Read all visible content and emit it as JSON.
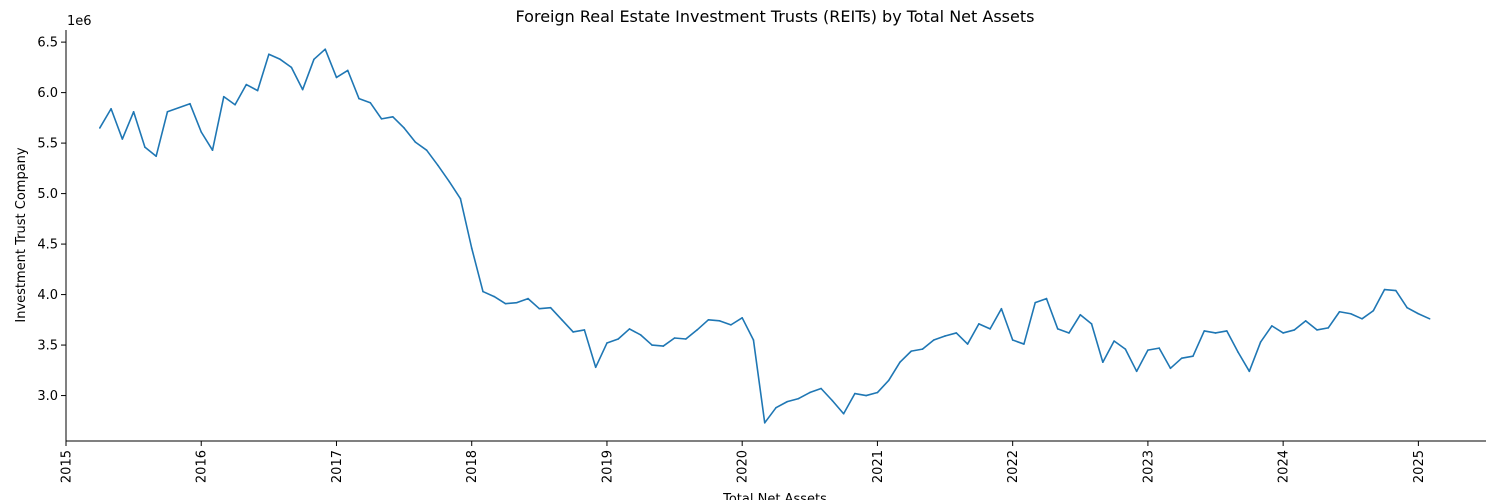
{
  "chart_data": {
    "type": "line",
    "title": "Foreign Real Estate Investment Trusts (REITs) by Total Net Assets",
    "xlabel": "Total Net Assets",
    "ylabel": "Investment Trust Company",
    "y_offset_text": "1e6",
    "x_tick_labels": [
      "2015",
      "2016",
      "2017",
      "2018",
      "2019",
      "2020",
      "2021",
      "2022",
      "2023",
      "2024",
      "2025"
    ],
    "y_tick_labels": [
      "3.0",
      "3.5",
      "4.0",
      "4.5",
      "5.0",
      "5.5",
      "6.0",
      "6.5"
    ],
    "y_ticks": [
      3000000,
      3500000,
      4000000,
      4500000,
      5000000,
      5500000,
      6000000,
      6500000
    ],
    "xlim": [
      "2015-01",
      "2025-07"
    ],
    "ylim": [
      2550000,
      6620000
    ],
    "grid": false,
    "color": "#1f77b4",
    "series": [
      {
        "x": [
          "2015-04",
          "2015-05",
          "2015-06",
          "2015-07",
          "2015-08",
          "2015-09",
          "2015-10",
          "2015-11",
          "2015-12",
          "2016-01",
          "2016-02",
          "2016-03",
          "2016-04",
          "2016-05",
          "2016-06",
          "2016-07",
          "2016-08",
          "2016-09",
          "2016-10",
          "2016-11",
          "2016-12",
          "2017-01",
          "2017-02",
          "2017-03",
          "2017-04",
          "2017-05",
          "2017-06",
          "2017-07",
          "2017-08",
          "2017-09",
          "2017-10",
          "2017-11",
          "2017-12",
          "2018-01",
          "2018-02",
          "2018-03",
          "2018-04",
          "2018-05",
          "2018-06",
          "2018-07",
          "2018-08",
          "2018-09",
          "2018-10",
          "2018-11",
          "2018-12",
          "2019-01",
          "2019-02",
          "2019-03",
          "2019-04",
          "2019-05",
          "2019-06",
          "2019-07",
          "2019-08",
          "2019-09",
          "2019-10",
          "2019-11",
          "2019-12",
          "2020-01",
          "2020-02",
          "2020-03",
          "2020-04",
          "2020-05",
          "2020-06",
          "2020-07",
          "2020-08",
          "2020-09",
          "2020-10",
          "2020-11",
          "2020-12",
          "2021-01",
          "2021-02",
          "2021-03",
          "2021-04",
          "2021-05",
          "2021-06",
          "2021-07",
          "2021-08",
          "2021-09",
          "2021-10",
          "2021-11",
          "2021-12",
          "2022-01",
          "2022-02",
          "2022-03",
          "2022-04",
          "2022-05",
          "2022-06",
          "2022-07",
          "2022-08",
          "2022-09",
          "2022-10",
          "2022-11",
          "2022-12",
          "2023-01",
          "2023-02",
          "2023-03",
          "2023-04",
          "2023-05",
          "2023-06",
          "2023-07",
          "2023-08",
          "2023-09",
          "2023-10",
          "2023-11",
          "2023-12",
          "2024-01",
          "2024-02",
          "2024-03",
          "2024-04",
          "2024-05",
          "2024-06",
          "2024-07",
          "2024-08",
          "2024-09",
          "2024-10",
          "2024-11",
          "2024-12",
          "2025-01",
          "2025-02"
        ],
        "values": [
          5650000,
          5840000,
          5540000,
          5810000,
          5460000,
          5370000,
          5810000,
          5850000,
          5890000,
          5610000,
          5430000,
          5960000,
          5880000,
          6080000,
          6020000,
          6380000,
          6330000,
          6250000,
          6030000,
          6330000,
          6430000,
          6150000,
          6220000,
          5940000,
          5900000,
          5740000,
          5760000,
          5650000,
          5510000,
          5430000,
          5280000,
          5120000,
          4950000,
          4460000,
          4030000,
          3980000,
          3910000,
          3920000,
          3960000,
          3860000,
          3870000,
          3750000,
          3630000,
          3650000,
          3280000,
          3520000,
          3560000,
          3660000,
          3600000,
          3500000,
          3490000,
          3570000,
          3560000,
          3650000,
          3750000,
          3740000,
          3700000,
          3770000,
          3550000,
          2730000,
          2880000,
          2940000,
          2970000,
          3030000,
          3070000,
          2950000,
          2820000,
          3020000,
          3000000,
          3030000,
          3150000,
          3330000,
          3440000,
          3460000,
          3550000,
          3590000,
          3620000,
          3510000,
          3710000,
          3660000,
          3860000,
          3550000,
          3510000,
          3920000,
          3960000,
          3660000,
          3620000,
          3800000,
          3710000,
          3330000,
          3540000,
          3460000,
          3240000,
          3450000,
          3470000,
          3270000,
          3370000,
          3390000,
          3640000,
          3620000,
          3640000,
          3430000,
          3240000,
          3530000,
          3690000,
          3620000,
          3650000,
          3740000,
          3650000,
          3670000,
          3830000,
          3810000,
          3760000,
          3840000,
          4050000,
          4040000,
          3870000,
          3810000,
          3760000
        ]
      }
    ]
  }
}
